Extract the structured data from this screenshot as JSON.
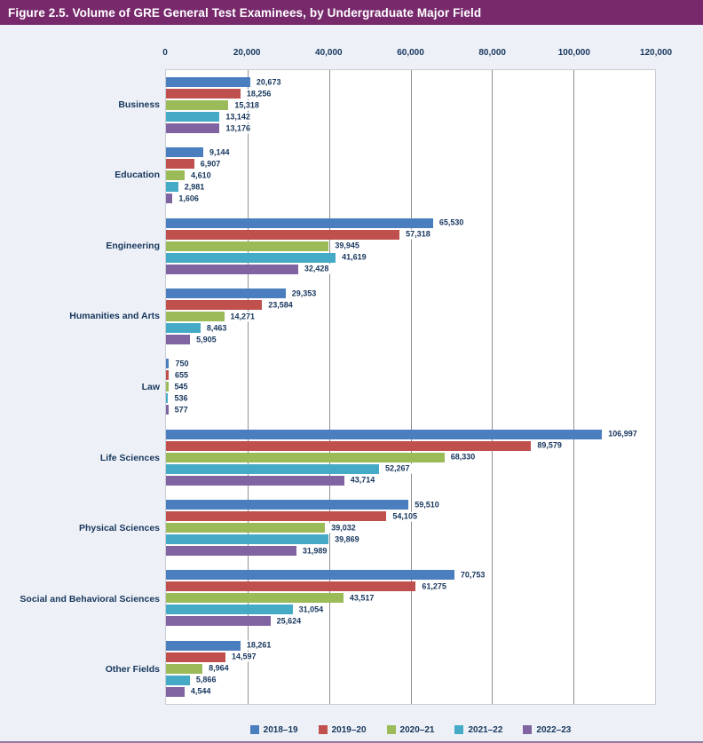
{
  "title": "Figure 2.5. Volume of GRE General Test Examinees, by Undergraduate Major Field",
  "page": {
    "background": "#EDF1F7",
    "title_bar_color": "#77296C",
    "text_color": "#17365D",
    "grid_color": "#8F8F8F",
    "plot_border_color": "#C9CDD4",
    "bottom_rule_color": "#8F7A9E"
  },
  "chart_data": {
    "type": "bar",
    "orientation": "horizontal",
    "title": "Figure 2.5. Volume of GRE General Test Examinees, by Undergraduate Major Field",
    "xlabel": "",
    "ylabel": "",
    "xlim": [
      0,
      120000
    ],
    "x_ticks": [
      {
        "value": 0,
        "label": "0"
      },
      {
        "value": 20000,
        "label": "20,000"
      },
      {
        "value": 40000,
        "label": "40,000"
      },
      {
        "value": 60000,
        "label": "60,000"
      },
      {
        "value": 80000,
        "label": "80,000"
      },
      {
        "value": 100000,
        "label": "100,000"
      },
      {
        "value": 120000,
        "label": "120,000"
      }
    ],
    "grid": "vertical",
    "legend_position": "bottom",
    "categories": [
      "Business",
      "Education",
      "Engineering",
      "Humanities and Arts",
      "Law",
      "Life Sciences",
      "Physical Sciences",
      "Social and Behavioral Sciences",
      "Other Fields"
    ],
    "series": [
      {
        "name": "2018–19",
        "color": "#4A7EBE",
        "values": [
          20673,
          9144,
          65530,
          29353,
          750,
          106997,
          59510,
          70753,
          18261
        ]
      },
      {
        "name": "2019–20",
        "color": "#C0504D",
        "values": [
          18256,
          6907,
          57318,
          23584,
          655,
          89579,
          54105,
          61275,
          14597
        ]
      },
      {
        "name": "2020–21",
        "color": "#9BBB59",
        "values": [
          15318,
          4610,
          39945,
          14271,
          545,
          68330,
          39032,
          43517,
          8964
        ]
      },
      {
        "name": "2021–22",
        "color": "#45AAC6",
        "values": [
          13142,
          2981,
          41619,
          8463,
          536,
          52267,
          39869,
          31054,
          5866
        ]
      },
      {
        "name": "2022–23",
        "color": "#8064A2",
        "values": [
          13176,
          1606,
          32428,
          5905,
          577,
          43714,
          31989,
          25624,
          4544
        ]
      }
    ]
  }
}
